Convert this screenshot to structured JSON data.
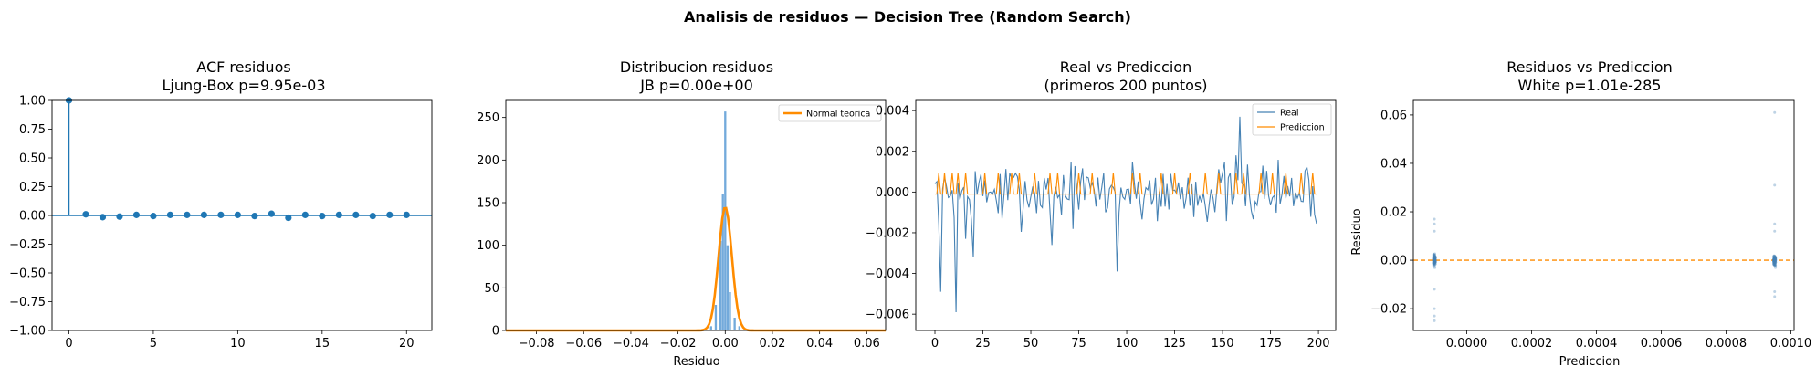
{
  "figure": {
    "suptitle": "Analisis de residuos — Decision Tree (Random Search)"
  },
  "chart_data": [
    {
      "type": "stem",
      "title": "ACF residuos\nLjung-Box p=9.95e-03",
      "title_lines": [
        "ACF residuos",
        "Ljung-Box p=9.95e-03"
      ],
      "xlabel": "",
      "ylabel": "",
      "xlim": [
        -1,
        21.5
      ],
      "ylim": [
        -1.0,
        1.0
      ],
      "xticks": [
        0,
        5,
        10,
        15,
        20
      ],
      "yticks": [
        -1.0,
        -0.75,
        -0.5,
        -0.25,
        0.0,
        0.25,
        0.5,
        0.75,
        1.0
      ],
      "ytick_labels": [
        "−1.00",
        "−0.75",
        "−0.50",
        "−0.25",
        "0.00",
        "0.25",
        "0.50",
        "0.75",
        "1.00"
      ],
      "lags": [
        0,
        1,
        2,
        3,
        4,
        5,
        6,
        7,
        8,
        9,
        10,
        11,
        12,
        13,
        14,
        15,
        16,
        17,
        18,
        19,
        20
      ],
      "values": [
        1.0,
        0.01,
        -0.015,
        -0.01,
        0.005,
        -0.005,
        0.005,
        0.005,
        0.005,
        0.005,
        0.005,
        -0.005,
        0.015,
        -0.02,
        0.005,
        -0.005,
        0.005,
        0.005,
        -0.005,
        0.005,
        0.005
      ],
      "color": "#1f77b4",
      "grid": false
    },
    {
      "type": "histogram",
      "title": "Distribucion residuos\nJB p=0.00e+00",
      "title_lines": [
        "Distribucion residuos",
        "JB p=0.00e+00"
      ],
      "xlabel": "Residuo",
      "ylabel": "",
      "xlim": [
        -0.093,
        0.068
      ],
      "ylim": [
        0,
        270
      ],
      "xticks": [
        -0.08,
        -0.06,
        -0.04,
        -0.02,
        0.0,
        0.02,
        0.04,
        0.06
      ],
      "xtick_labels": [
        "−0.08",
        "−0.06",
        "−0.04",
        "−0.02",
        "0.00",
        "0.02",
        "0.04",
        "0.06"
      ],
      "yticks": [
        0,
        50,
        100,
        150,
        200,
        250
      ],
      "bins": [
        {
          "x": -0.006,
          "count": 5
        },
        {
          "x": -0.004,
          "count": 30
        },
        {
          "x": -0.002,
          "count": 105
        },
        {
          "x": -0.001,
          "count": 160
        },
        {
          "x": 0.0,
          "count": 257
        },
        {
          "x": 0.001,
          "count": 100
        },
        {
          "x": 0.002,
          "count": 45
        },
        {
          "x": 0.004,
          "count": 15
        },
        {
          "x": 0.006,
          "count": 5
        }
      ],
      "bar_color": "#5b9bd5",
      "normal_curve": {
        "name": "Normal teorica",
        "mean": 0.0,
        "peak": 145,
        "sigma": 0.0028,
        "color": "#ff8c00"
      },
      "legend": {
        "position": "upper-right",
        "entries": [
          "Normal teorica"
        ]
      },
      "grid": false
    },
    {
      "type": "line",
      "title": "Real vs Prediccion\n(primeros 200 puntos)",
      "title_lines": [
        "Real vs Prediccion",
        "(primeros 200 puntos)"
      ],
      "xlabel": "",
      "ylabel": "",
      "xlim": [
        -10,
        209
      ],
      "ylim": [
        -0.0068,
        0.0045
      ],
      "xticks": [
        0,
        25,
        50,
        75,
        100,
        125,
        150,
        175,
        200
      ],
      "yticks": [
        -0.006,
        -0.004,
        -0.002,
        0.0,
        0.002,
        0.004
      ],
      "ytick_labels": [
        "−0.006",
        "−0.004",
        "−0.002",
        "0.000",
        "0.002",
        "0.004"
      ],
      "series": [
        {
          "name": "Real",
          "color": "#4682b4",
          "seed": 7,
          "n": 200,
          "points_abs_max": 0.0027,
          "spikes": [
            [
              3,
              -0.0049
            ],
            [
              11,
              -0.0059
            ],
            [
              16,
              -0.0023
            ],
            [
              20,
              -0.0032
            ],
            [
              35,
              -0.0013
            ],
            [
              61,
              -0.0026
            ],
            [
              95,
              -0.0039
            ],
            [
              159,
              0.0037
            ]
          ]
        },
        {
          "name": "Prediccion",
          "color": "#ff8c00",
          "base": -0.0001,
          "high": 0.00095,
          "high_idx": [
            2,
            5,
            9,
            12,
            16,
            26,
            33,
            40,
            44,
            52,
            60,
            64,
            75,
            82,
            93,
            103,
            107,
            118,
            125,
            133,
            141,
            148,
            157,
            161,
            170,
            176,
            183,
            191,
            197
          ]
        }
      ],
      "legend": {
        "position": "upper-right",
        "entries": [
          "Real",
          "Prediccion"
        ]
      },
      "grid": false
    },
    {
      "type": "scatter",
      "title": "Residuos vs Prediccion\nWhite p=1.01e-285",
      "title_lines": [
        "Residuos vs Prediccion",
        "White p=1.01e-285"
      ],
      "xlabel": "Prediccion",
      "ylabel": "Residuo",
      "xlim": [
        -0.000165,
        0.00101
      ],
      "ylim": [
        -0.029,
        0.066
      ],
      "xticks": [
        0.0,
        0.0002,
        0.0004,
        0.0006,
        0.0008,
        0.001
      ],
      "xtick_labels": [
        "0.0000",
        "0.0002",
        "0.0004",
        "0.0006",
        "0.0008",
        "0.0010"
      ],
      "yticks": [
        -0.02,
        0.0,
        0.02,
        0.04,
        0.06
      ],
      "ytick_labels": [
        "−0.02",
        "0.00",
        "0.02",
        "0.04",
        "0.06"
      ],
      "clusters": [
        {
          "x": -0.0001,
          "n": 90,
          "spread": 0.003,
          "outliers": [
            -0.025,
            -0.023,
            -0.02,
            0.012,
            0.015,
            0.017,
            -0.012
          ]
        },
        {
          "x": 0.00095,
          "n": 90,
          "spread": 0.003,
          "outliers": [
            0.061,
            0.031,
            0.015,
            -0.015,
            -0.013,
            0.012
          ]
        }
      ],
      "point_color": "#4682b4",
      "reference_line": {
        "y": 0.0,
        "color": "#ff8c00",
        "style": "dashed"
      },
      "grid": false
    }
  ]
}
